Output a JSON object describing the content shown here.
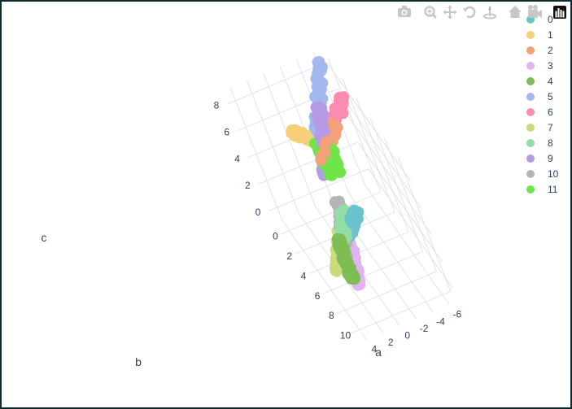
{
  "modebar": {
    "buttons": [
      {
        "name": "camera-icon"
      },
      {
        "name": "zoom-icon"
      },
      {
        "name": "pan-icon"
      },
      {
        "name": "orbit-rotation-icon"
      },
      {
        "name": "turntable-rotation-icon"
      },
      {
        "name": "home-icon"
      },
      {
        "name": "camera-reset-icon"
      },
      {
        "name": "plotly-logo-icon"
      }
    ]
  },
  "chart_data": {
    "type": "scatter3d",
    "axes": {
      "x": {
        "title": "a",
        "ticks": [
          "0",
          "2",
          "4",
          "6",
          "8",
          "10"
        ],
        "range": [
          -1,
          11
        ]
      },
      "y": {
        "title": "b",
        "ticks": [
          "-6",
          "-4",
          "-2",
          "0",
          "2",
          "4"
        ],
        "range": [
          -7,
          5
        ]
      },
      "z": {
        "title": "c",
        "ticks": [
          "0",
          "2",
          "4",
          "6",
          "8"
        ],
        "range": [
          -1,
          9
        ]
      }
    },
    "legend_position": "top-right",
    "series": [
      {
        "name": "0",
        "color": "#6ac3cc",
        "segments": [
          [
            [
              5,
              0,
              1
            ],
            [
              8,
              -1,
              5
            ]
          ]
        ]
      },
      {
        "name": "1",
        "color": "#f7cf78",
        "segments": [
          [
            [
              1,
              0,
              6
            ],
            [
              2,
              -3,
              5
            ]
          ]
        ]
      },
      {
        "name": "2",
        "color": "#f4a078",
        "segments": [
          [
            [
              4,
              -1,
              6
            ],
            [
              3,
              -4,
              7
            ]
          ]
        ]
      },
      {
        "name": "3",
        "color": "#e3b3ef",
        "segments": [
          [
            [
              5.5,
              0,
              1
            ],
            [
              9,
              2,
              1
            ]
          ]
        ]
      },
      {
        "name": "4",
        "color": "#7ebd55",
        "segments": [
          [
            [
              7,
              1.5,
              3
            ],
            [
              9.5,
              2.5,
              2
            ]
          ]
        ]
      },
      {
        "name": "5",
        "color": "#a3b8ee",
        "segments": [
          [
            [
              0,
              -6,
              9
            ],
            [
              2,
              -2,
              6
            ]
          ]
        ]
      },
      {
        "name": "6",
        "color": "#fc8cae",
        "segments": [
          [
            [
              0,
              -7,
              6
            ],
            [
              2,
              -2,
              5
            ]
          ]
        ]
      },
      {
        "name": "7",
        "color": "#cbdb7c",
        "segments": [
          [
            [
              4,
              -1,
              2
            ],
            [
              7,
              3,
              1
            ]
          ]
        ]
      },
      {
        "name": "8",
        "color": "#93dda8",
        "segments": [
          [
            [
              5,
              -1,
              3
            ],
            [
              7,
              1,
              3
            ]
          ]
        ]
      },
      {
        "name": "9",
        "color": "#b59ae6",
        "segments": [
          [
            [
              3.5,
              -3,
              9
            ],
            [
              3,
              -1,
              4
            ]
          ]
        ]
      },
      {
        "name": "10",
        "color": "#b4b4b4",
        "segments": [
          [
            [
              4,
              -1,
              3
            ],
            [
              8,
              2,
              2
            ]
          ]
        ]
      },
      {
        "name": "11",
        "color": "#70e54a",
        "blob": [
          3.5,
          -1.8,
          5.5
        ]
      }
    ]
  }
}
